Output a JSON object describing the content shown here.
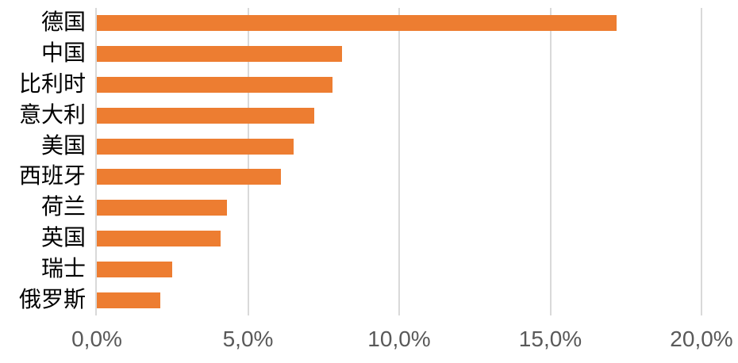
{
  "chart_data": {
    "type": "bar",
    "orientation": "horizontal",
    "title": "",
    "xlabel": "",
    "ylabel": "",
    "categories": [
      "德国",
      "中国",
      "比利时",
      "意大利",
      "美国",
      "西班牙",
      "荷兰",
      "英国",
      "瑞士",
      "俄罗斯"
    ],
    "values": [
      17.2,
      8.1,
      7.8,
      7.2,
      6.5,
      6.1,
      4.3,
      4.1,
      2.5,
      2.1
    ],
    "unit": "%",
    "xlim": [
      0,
      20
    ],
    "x_ticks": [
      0,
      5,
      10,
      15,
      20
    ],
    "x_tick_labels": [
      "0,0%",
      "5,0%",
      "10,0%",
      "15,0%",
      "20,0%"
    ],
    "grid": "vertical",
    "legend": null,
    "colors": {
      "bar": "#ED7D31",
      "gridline": "#D9D9D9",
      "axis_line": "#D9D9D9",
      "tick_label": "#595959",
      "category_label": "#000000",
      "background": "#FFFFFF"
    }
  }
}
